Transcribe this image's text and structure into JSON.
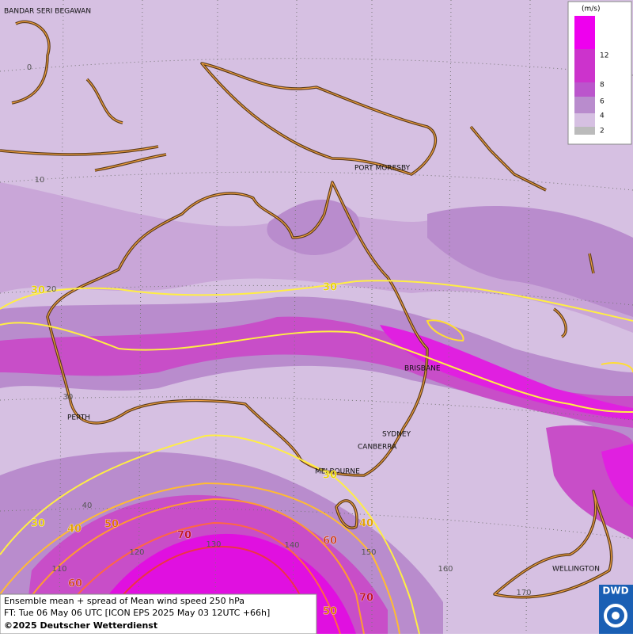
{
  "map": {
    "cities": [
      "BANDAR SERI BEGAWAN",
      "PORT MORESBY",
      "BRISBANE",
      "PERTH",
      "SYDNEY",
      "CANBERRA",
      "MELBOURNE",
      "WELLINGTON"
    ],
    "latitude_labels": [
      0,
      10,
      20,
      30,
      40
    ],
    "longitude_labels": [
      110,
      120,
      130,
      140,
      150,
      160,
      170
    ],
    "contour_labels": [
      30,
      30,
      30,
      30,
      40,
      40,
      50,
      50,
      60,
      60,
      70,
      70
    ]
  },
  "legend": {
    "unit": "(m/s)",
    "ticks": [
      12,
      8,
      6,
      4,
      2
    ]
  },
  "footer": {
    "lines": [
      "Ensemble mean + spread of Mean wind speed 250 hPa",
      "FT: Tue 06 May 06 UTC [ICON EPS 2025 May 03 12UTC +66h]",
      "©2025 Deutscher Wetterdienst"
    ]
  },
  "logo": "DWD"
}
